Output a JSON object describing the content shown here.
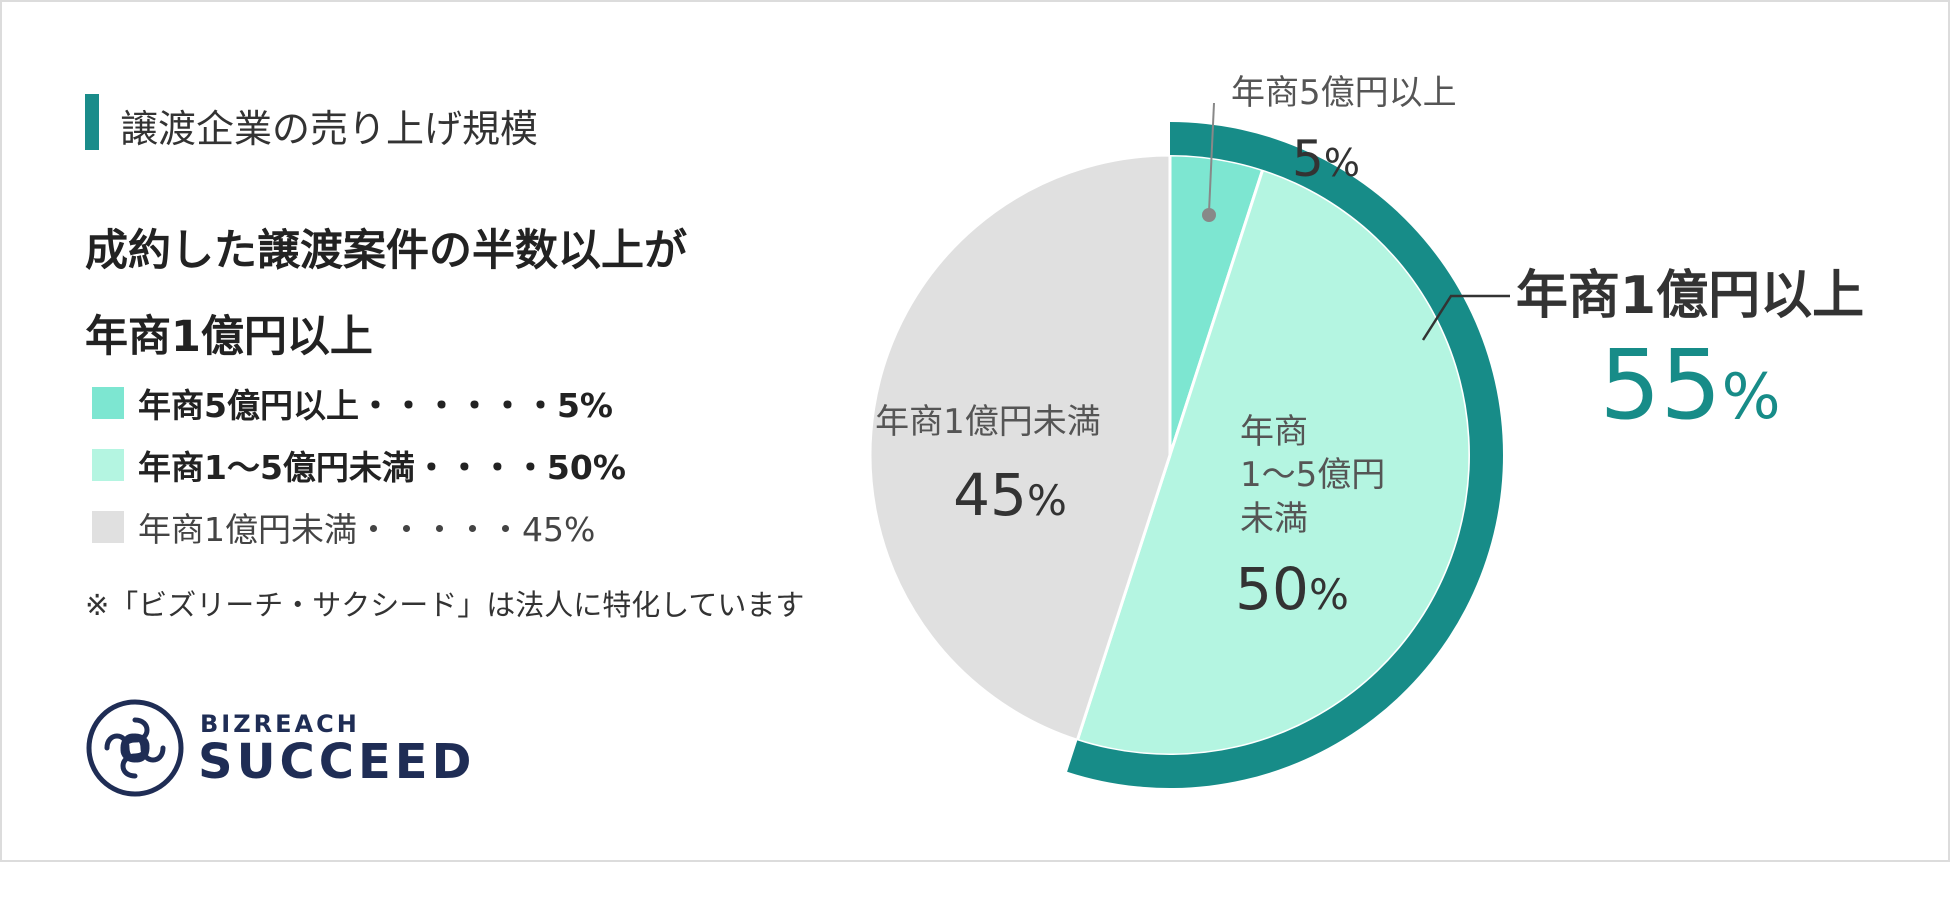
{
  "section_title": "譲渡企業の売り上げ規模",
  "headline": [
    "成約した譲渡案件の半数以上が",
    "年商1億円以上"
  ],
  "legend": [
    {
      "label": "年商5億円以上・・・・・・5%",
      "color": "#7de6d1",
      "style": "bold"
    },
    {
      "label": "年商1〜5億円未満・・・・50%",
      "color": "#b4f5e1",
      "style": "bold"
    },
    {
      "label": "年商1億円未満・・・・・45%",
      "color": "#e0e0e0",
      "style": "normal"
    }
  ],
  "note": "※「ビズリーチ・サクシード」は法人に特化しています",
  "logo": {
    "small": "BIZREACH",
    "big": "SUCCEED"
  },
  "chart_data": {
    "type": "pie",
    "start": "top",
    "direction": "clockwise",
    "slices": [
      {
        "name": "年商5億円以上",
        "value": 5,
        "color": "#7de6d1",
        "label_lines": [
          "年商5億円以上"
        ],
        "value_text": "5",
        "unit": "%"
      },
      {
        "name": "年商1〜5億円未満",
        "value": 50,
        "color": "#b4f5e1",
        "label_lines": [
          "年商",
          "1〜5億円",
          "未満"
        ],
        "value_text": "50",
        "unit": "%"
      },
      {
        "name": "年商1億円未満",
        "value": 45,
        "color": "#e0e0e0",
        "label_lines": [
          "年商1億円未満"
        ],
        "value_text": "45",
        "unit": "%"
      }
    ],
    "highlight": {
      "label": "年商1億円以上",
      "value": 55,
      "value_text": "55",
      "unit": "%",
      "color": "#178c88"
    }
  }
}
